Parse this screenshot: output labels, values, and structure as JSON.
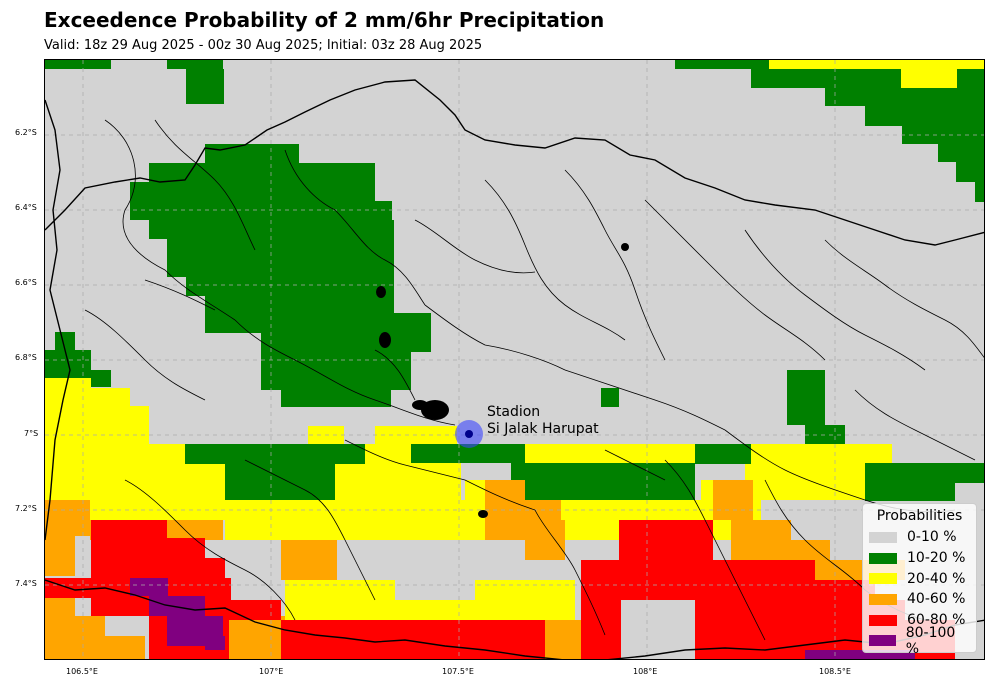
{
  "title": "Exceedence Probability of 2 mm/6hr Precipitation",
  "subtitle": "Valid: 18z 29 Aug 2025 - 00z 30 Aug 2025; Initial: 03z 28 Aug 2025",
  "map": {
    "region": "West Java, Indonesia",
    "lon_range": [
      106.4,
      108.9
    ],
    "lat_range": [
      -7.6,
      -6.0
    ],
    "x_ticks": [
      "106.5°E",
      "107°E",
      "107.5°E",
      "108°E",
      "108.5°E"
    ],
    "y_ticks": [
      "6.2°S",
      "6.4°S",
      "6.6°S",
      "6.8°S",
      "7°S",
      "7.2°S",
      "7.4°S"
    ],
    "gridlines": true
  },
  "station": {
    "label_line1": "Stadion",
    "label_line2": "Si Jalak Harupat",
    "lon": 107.53,
    "lat": -7.0
  },
  "legend": {
    "title": "Probabilities",
    "items": [
      {
        "label": "0-10 %",
        "color": "#d3d3d3"
      },
      {
        "label": "10-20 %",
        "color": "#008000"
      },
      {
        "label": "20-40 %",
        "color": "#ffff00"
      },
      {
        "label": "40-60 %",
        "color": "#ffa500"
      },
      {
        "label": "60-80 %",
        "color": "#ff0000"
      },
      {
        "label": "80-100 %",
        "color": "#800080"
      }
    ]
  }
}
